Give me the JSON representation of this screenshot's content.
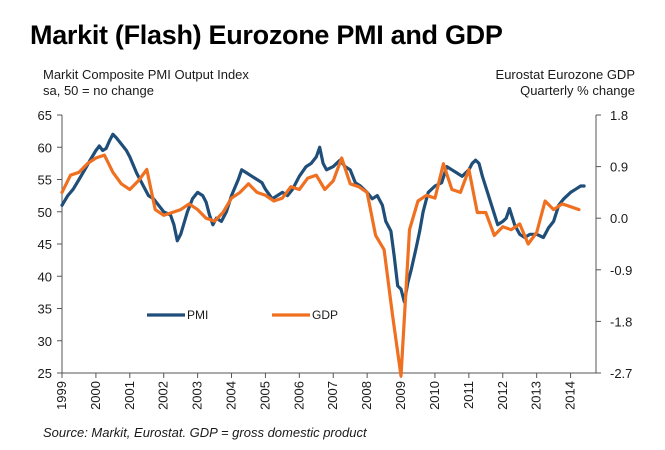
{
  "header": {
    "title": "Markit (Flash) Eurozone PMI and GDP",
    "left_line1": "Markit Composite PMI Output Index",
    "left_line2": "sa, 50 = no change",
    "right_line1": "Eurostat Eurozone GDP",
    "right_line2": "Quarterly % change"
  },
  "footer": {
    "source": "Source: Markit, Eurostat. GDP = gross domestic product"
  },
  "chart_data": {
    "type": "line",
    "title": "Markit (Flash) Eurozone PMI and GDP",
    "x_tick_labels": [
      "1999",
      "2000",
      "2001",
      "2002",
      "2003",
      "2004",
      "2005",
      "2006",
      "2007",
      "2008",
      "2009",
      "2010",
      "2011",
      "2012",
      "2013",
      "2014"
    ],
    "left_axis": {
      "label": "Markit Composite PMI Output Index",
      "ylim": [
        25,
        65
      ],
      "ticks": [
        "25",
        "30",
        "35",
        "40",
        "45",
        "50",
        "55",
        "60",
        "65"
      ]
    },
    "right_axis": {
      "label": "Eurostat Eurozone GDP",
      "ylim": [
        -2.7,
        1.8
      ],
      "ticks": [
        "-2.7",
        "-1.8",
        "-0.9",
        "0.0",
        "0.9",
        "1.8"
      ]
    },
    "legend_placement": "lower-left inside plot",
    "grid": false,
    "series": [
      {
        "name": "PMI",
        "axis": "left",
        "color": "#1f4e79",
        "points": [
          [
            1999.0,
            51.0
          ],
          [
            1999.17,
            52.5
          ],
          [
            1999.33,
            53.5
          ],
          [
            1999.5,
            55.0
          ],
          [
            1999.67,
            56.5
          ],
          [
            1999.83,
            58.0
          ],
          [
            2000.0,
            59.5
          ],
          [
            2000.1,
            60.2
          ],
          [
            2000.2,
            59.5
          ],
          [
            2000.3,
            59.8
          ],
          [
            2000.4,
            61.0
          ],
          [
            2000.5,
            62.0
          ],
          [
            2000.6,
            61.5
          ],
          [
            2000.75,
            60.5
          ],
          [
            2000.9,
            59.5
          ],
          [
            2001.0,
            58.5
          ],
          [
            2001.2,
            56.0
          ],
          [
            2001.4,
            54.0
          ],
          [
            2001.55,
            52.5
          ],
          [
            2001.7,
            52.0
          ],
          [
            2001.85,
            51.0
          ],
          [
            2002.0,
            50.0
          ],
          [
            2002.2,
            49.5
          ],
          [
            2002.3,
            48.0
          ],
          [
            2002.4,
            45.5
          ],
          [
            2002.5,
            46.5
          ],
          [
            2002.7,
            50.0
          ],
          [
            2002.85,
            52.0
          ],
          [
            2003.0,
            53.0
          ],
          [
            2003.15,
            52.5
          ],
          [
            2003.25,
            51.5
          ],
          [
            2003.35,
            49.5
          ],
          [
            2003.45,
            48.0
          ],
          [
            2003.55,
            49.0
          ],
          [
            2003.7,
            48.5
          ],
          [
            2003.85,
            50.0
          ],
          [
            2004.0,
            52.5
          ],
          [
            2004.2,
            55.0
          ],
          [
            2004.3,
            56.5
          ],
          [
            2004.45,
            56.0
          ],
          [
            2004.6,
            55.5
          ],
          [
            2004.75,
            55.0
          ],
          [
            2004.9,
            54.5
          ],
          [
            2005.0,
            53.5
          ],
          [
            2005.2,
            52.0
          ],
          [
            2005.35,
            52.5
          ],
          [
            2005.5,
            53.0
          ],
          [
            2005.65,
            52.5
          ],
          [
            2005.8,
            53.5
          ],
          [
            2006.0,
            55.5
          ],
          [
            2006.2,
            57.0
          ],
          [
            2006.35,
            57.5
          ],
          [
            2006.5,
            58.5
          ],
          [
            2006.6,
            60.0
          ],
          [
            2006.7,
            57.5
          ],
          [
            2006.8,
            56.5
          ],
          [
            2007.0,
            57.0
          ],
          [
            2007.2,
            58.0
          ],
          [
            2007.35,
            57.0
          ],
          [
            2007.5,
            56.5
          ],
          [
            2007.65,
            54.5
          ],
          [
            2007.8,
            54.0
          ],
          [
            2008.0,
            53.0
          ],
          [
            2008.15,
            52.0
          ],
          [
            2008.3,
            52.5
          ],
          [
            2008.45,
            51.0
          ],
          [
            2008.55,
            48.5
          ],
          [
            2008.7,
            47.0
          ],
          [
            2008.8,
            43.0
          ],
          [
            2008.9,
            38.5
          ],
          [
            2009.0,
            38.0
          ],
          [
            2009.1,
            36.0
          ],
          [
            2009.2,
            39.0
          ],
          [
            2009.3,
            41.0
          ],
          [
            2009.45,
            44.5
          ],
          [
            2009.55,
            47.0
          ],
          [
            2009.65,
            50.0
          ],
          [
            2009.8,
            53.0
          ],
          [
            2010.0,
            54.0
          ],
          [
            2010.2,
            54.5
          ],
          [
            2010.35,
            57.0
          ],
          [
            2010.5,
            56.5
          ],
          [
            2010.65,
            56.0
          ],
          [
            2010.8,
            55.5
          ],
          [
            2011.0,
            56.5
          ],
          [
            2011.1,
            57.5
          ],
          [
            2011.2,
            58.0
          ],
          [
            2011.3,
            57.5
          ],
          [
            2011.4,
            55.5
          ],
          [
            2011.55,
            53.0
          ],
          [
            2011.7,
            50.5
          ],
          [
            2011.85,
            48.0
          ],
          [
            2012.0,
            48.5
          ],
          [
            2012.1,
            49.0
          ],
          [
            2012.2,
            50.5
          ],
          [
            2012.35,
            48.0
          ],
          [
            2012.5,
            46.5
          ],
          [
            2012.65,
            46.0
          ],
          [
            2012.8,
            46.5
          ],
          [
            2013.0,
            46.5
          ],
          [
            2013.2,
            46.0
          ],
          [
            2013.35,
            47.5
          ],
          [
            2013.5,
            48.5
          ],
          [
            2013.65,
            51.0
          ],
          [
            2013.8,
            52.0
          ],
          [
            2014.0,
            53.0
          ],
          [
            2014.15,
            53.5
          ],
          [
            2014.3,
            54.0
          ],
          [
            2014.4,
            54.0
          ]
        ]
      },
      {
        "name": "GDP",
        "axis": "right",
        "color": "#f07022",
        "points": [
          [
            1999.0,
            0.45
          ],
          [
            1999.25,
            0.75
          ],
          [
            1999.5,
            0.8
          ],
          [
            1999.75,
            0.95
          ],
          [
            2000.0,
            1.05
          ],
          [
            2000.25,
            1.1
          ],
          [
            2000.5,
            0.8
          ],
          [
            2000.75,
            0.6
          ],
          [
            2001.0,
            0.5
          ],
          [
            2001.25,
            0.65
          ],
          [
            2001.5,
            0.85
          ],
          [
            2001.75,
            0.15
          ],
          [
            2002.0,
            0.05
          ],
          [
            2002.25,
            0.1
          ],
          [
            2002.5,
            0.15
          ],
          [
            2002.75,
            0.25
          ],
          [
            2003.0,
            0.15
          ],
          [
            2003.25,
            0.0
          ],
          [
            2003.5,
            -0.05
          ],
          [
            2003.75,
            0.1
          ],
          [
            2004.0,
            0.35
          ],
          [
            2004.25,
            0.45
          ],
          [
            2004.5,
            0.6
          ],
          [
            2004.75,
            0.45
          ],
          [
            2005.0,
            0.4
          ],
          [
            2005.25,
            0.3
          ],
          [
            2005.5,
            0.35
          ],
          [
            2005.75,
            0.55
          ],
          [
            2006.0,
            0.5
          ],
          [
            2006.25,
            0.7
          ],
          [
            2006.5,
            0.75
          ],
          [
            2006.75,
            0.5
          ],
          [
            2007.0,
            0.65
          ],
          [
            2007.25,
            1.05
          ],
          [
            2007.5,
            0.6
          ],
          [
            2007.75,
            0.55
          ],
          [
            2008.0,
            0.45
          ],
          [
            2008.25,
            -0.3
          ],
          [
            2008.5,
            -0.55
          ],
          [
            2008.75,
            -1.7
          ],
          [
            2009.0,
            -2.75
          ],
          [
            2009.25,
            -0.2
          ],
          [
            2009.5,
            0.3
          ],
          [
            2009.75,
            0.4
          ],
          [
            2010.0,
            0.35
          ],
          [
            2010.25,
            0.95
          ],
          [
            2010.5,
            0.5
          ],
          [
            2010.75,
            0.45
          ],
          [
            2011.0,
            0.85
          ],
          [
            2011.25,
            0.1
          ],
          [
            2011.5,
            0.1
          ],
          [
            2011.75,
            -0.3
          ],
          [
            2012.0,
            -0.15
          ],
          [
            2012.25,
            -0.2
          ],
          [
            2012.5,
            -0.1
          ],
          [
            2012.75,
            -0.45
          ],
          [
            2013.0,
            -0.25
          ],
          [
            2013.25,
            0.3
          ],
          [
            2013.5,
            0.15
          ],
          [
            2013.75,
            0.25
          ],
          [
            2014.0,
            0.2
          ],
          [
            2014.25,
            0.15
          ]
        ]
      }
    ]
  }
}
